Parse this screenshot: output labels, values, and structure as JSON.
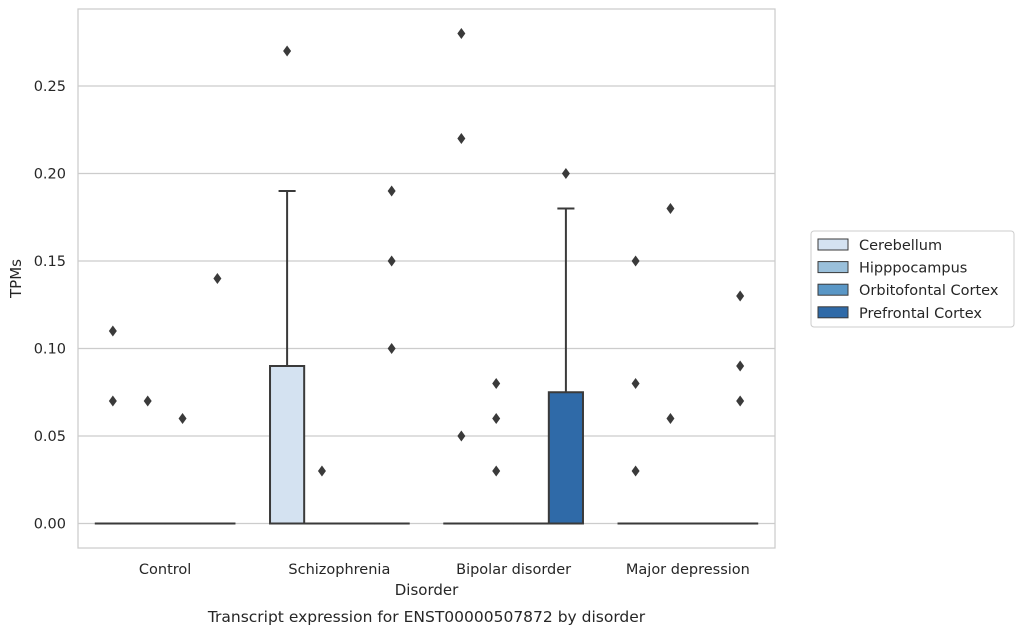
{
  "chart_data": {
    "type": "box",
    "title": "Transcript expression for ENST00000507872 by disorder",
    "xlabel": "Disorder",
    "ylabel": "TPMs",
    "ylim": [
      -0.014,
      0.294
    ],
    "yticks": [
      0.0,
      0.05,
      0.1,
      0.15,
      0.2,
      0.25
    ],
    "ytick_labels": [
      "0.00",
      "0.05",
      "0.10",
      "0.15",
      "0.20",
      "0.25"
    ],
    "grid": "horizontal",
    "legend_position": "right",
    "categories": [
      "Control",
      "Schizophrenia",
      "Bipolar disorder",
      "Major depression"
    ],
    "series": [
      {
        "name": "Cerebellum",
        "color": "#d4e2f1",
        "boxes": [
          {
            "q1": 0,
            "median": 0,
            "q3": 0,
            "whisker_low": 0,
            "whisker_high": 0,
            "outliers": [
              0.11,
              0.07
            ]
          },
          {
            "q1": 0,
            "median": 0,
            "q3": 0.09,
            "whisker_low": 0,
            "whisker_high": 0.19,
            "outliers": [
              0.27
            ]
          },
          {
            "q1": 0,
            "median": 0,
            "q3": 0,
            "whisker_low": 0,
            "whisker_high": 0,
            "outliers": [
              0.28,
              0.22,
              0.05
            ]
          },
          {
            "q1": 0,
            "median": 0,
            "q3": 0,
            "whisker_low": 0,
            "whisker_high": 0,
            "outliers": [
              0.15,
              0.08,
              0.03
            ]
          }
        ]
      },
      {
        "name": "Hipppocampus",
        "color": "#9ac0db",
        "boxes": [
          {
            "q1": 0,
            "median": 0,
            "q3": 0,
            "whisker_low": 0,
            "whisker_high": 0,
            "outliers": [
              0.07
            ]
          },
          {
            "q1": 0,
            "median": 0,
            "q3": 0,
            "whisker_low": 0,
            "whisker_high": 0,
            "outliers": [
              0.03
            ]
          },
          {
            "q1": 0,
            "median": 0,
            "q3": 0,
            "whisker_low": 0,
            "whisker_high": 0,
            "outliers": [
              0.08,
              0.06,
              0.03
            ]
          },
          {
            "q1": 0,
            "median": 0,
            "q3": 0,
            "whisker_low": 0,
            "whisker_high": 0,
            "outliers": [
              0.18,
              0.06
            ]
          }
        ]
      },
      {
        "name": "Orbitofontal Cortex",
        "color": "#5a97c6",
        "boxes": [
          {
            "q1": 0,
            "median": 0,
            "q3": 0,
            "whisker_low": 0,
            "whisker_high": 0,
            "outliers": [
              0.06
            ]
          },
          {
            "q1": 0,
            "median": 0,
            "q3": 0,
            "whisker_low": 0,
            "whisker_high": 0,
            "outliers": []
          },
          {
            "q1": 0,
            "median": 0,
            "q3": 0,
            "whisker_low": 0,
            "whisker_high": 0,
            "outliers": []
          },
          {
            "q1": 0,
            "median": 0,
            "q3": 0,
            "whisker_low": 0,
            "whisker_high": 0,
            "outliers": []
          }
        ]
      },
      {
        "name": "Prefrontal Cortex",
        "color": "#2f6aa8",
        "boxes": [
          {
            "q1": 0,
            "median": 0,
            "q3": 0,
            "whisker_low": 0,
            "whisker_high": 0,
            "outliers": [
              0.14
            ]
          },
          {
            "q1": 0,
            "median": 0,
            "q3": 0,
            "whisker_low": 0,
            "whisker_high": 0,
            "outliers": [
              0.19,
              0.15,
              0.1
            ]
          },
          {
            "q1": 0,
            "median": 0,
            "q3": 0.075,
            "whisker_low": 0,
            "whisker_high": 0.18,
            "outliers": [
              0.2
            ]
          },
          {
            "q1": 0,
            "median": 0,
            "q3": 0,
            "whisker_low": 0,
            "whisker_high": 0,
            "outliers": [
              0.13,
              0.09,
              0.07
            ]
          }
        ]
      }
    ]
  }
}
